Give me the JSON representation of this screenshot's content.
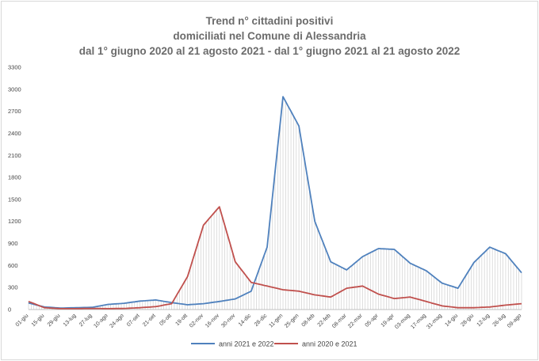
{
  "chart_data": {
    "type": "line",
    "title": [
      "Trend n° cittadini positivi",
      "domiciliati nel Comune di Alessandria",
      "dal 1° giugno 2020 al 21 agosto 2021 - dal 1° giugno 2021 al 21 agosto 2022"
    ],
    "xlabel": "",
    "ylabel": "",
    "ylim": [
      0,
      3300
    ],
    "yticks": [
      0,
      300,
      600,
      900,
      1200,
      1500,
      1800,
      2100,
      2400,
      2700,
      3000,
      3300
    ],
    "categories": [
      "01-giu",
      "15-giu",
      "29-giu",
      "13-lug",
      "27-lug",
      "10-ago",
      "24-ago",
      "07-set",
      "21-set",
      "05-ott",
      "19-ott",
      "02-nov",
      "16-nov",
      "30-nov",
      "14-dic",
      "28-dic",
      "11-gen",
      "25-gen",
      "08-feb",
      "22-feb",
      "08-mar",
      "22-mar",
      "05-apr",
      "19-apr",
      "03-mag",
      "17-mag",
      "31-mag",
      "14-giu",
      "28-giu",
      "12-lug",
      "26-lug",
      "09-ago"
    ],
    "grid": false,
    "legend_position": "bottom",
    "series": [
      {
        "name": "anni 2021 e 2022",
        "color": "#4f81bd",
        "values": [
          90,
          35,
          20,
          25,
          30,
          70,
          85,
          115,
          130,
          95,
          65,
          80,
          110,
          145,
          250,
          850,
          2900,
          2500,
          1200,
          650,
          540,
          720,
          830,
          820,
          630,
          530,
          360,
          290,
          640,
          850,
          760,
          500
        ]
      },
      {
        "name": "anni 2020 e 2021",
        "color": "#c0504d",
        "values": [
          110,
          25,
          12,
          12,
          15,
          12,
          15,
          25,
          40,
          80,
          450,
          1150,
          1400,
          650,
          370,
          320,
          270,
          250,
          200,
          170,
          290,
          320,
          210,
          150,
          170,
          110,
          50,
          25,
          25,
          35,
          60,
          80
        ]
      }
    ]
  }
}
